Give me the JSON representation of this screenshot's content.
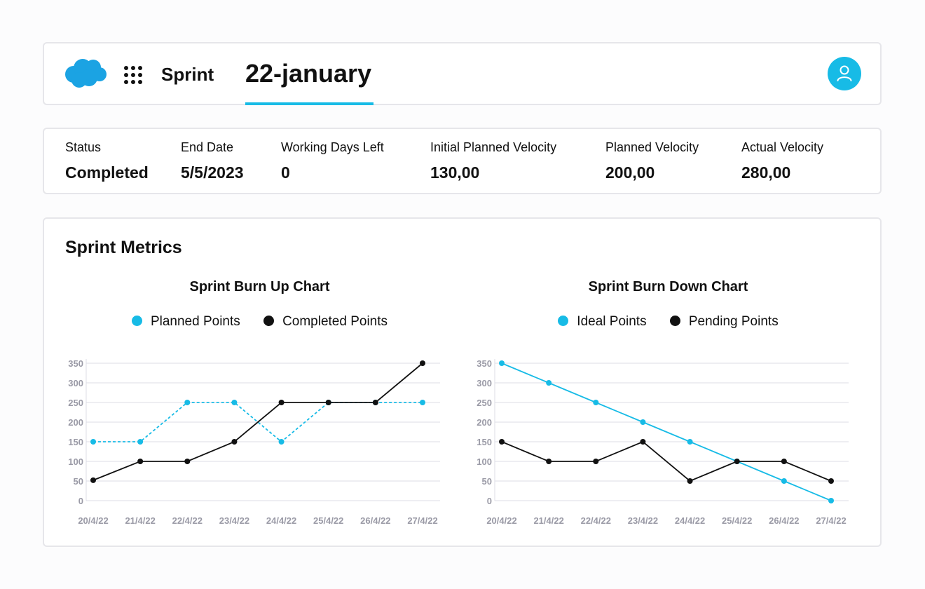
{
  "header": {
    "app": "Sprint",
    "tab": "22-january"
  },
  "stats": [
    {
      "label": "Status",
      "value": "Completed"
    },
    {
      "label": "End Date",
      "value": "5/5/2023"
    },
    {
      "label": "Working Days Left",
      "value": "0"
    },
    {
      "label": "Initial Planned Velocity",
      "value": "130,00"
    },
    {
      "label": "Planned Velocity",
      "value": "200,00"
    },
    {
      "label": "Actual Velocity",
      "value": "280,00"
    }
  ],
  "metrics": {
    "title": "Sprint Metrics"
  },
  "colors": {
    "accent": "#17bbe6",
    "series_dark": "#111111",
    "grid": "#dcdce6",
    "tick": "#9a9aa6"
  },
  "chart_data": [
    {
      "type": "line",
      "title": "Sprint Burn Up Chart",
      "categories": [
        "20/4/22",
        "21/4/22",
        "22/4/22",
        "23/4/22",
        "24/4/22",
        "25/4/22",
        "26/4/22",
        "27/4/22"
      ],
      "ylim": [
        0,
        350
      ],
      "yticks": [
        0,
        50,
        100,
        150,
        200,
        250,
        300,
        350
      ],
      "grid": true,
      "legend": "top-center",
      "series": [
        {
          "name": "Planned Points",
          "values": [
            150,
            150,
            250,
            250,
            150,
            250,
            250,
            250
          ],
          "color": "#17bbe6",
          "dashed": true
        },
        {
          "name": "Completed Points",
          "values": [
            52,
            100,
            100,
            150,
            250,
            250,
            250,
            350
          ],
          "color": "#111111",
          "dashed": false
        }
      ]
    },
    {
      "type": "line",
      "title": "Sprint Burn Down Chart",
      "categories": [
        "20/4/22",
        "21/4/22",
        "22/4/22",
        "23/4/22",
        "24/4/22",
        "25/4/22",
        "26/4/22",
        "27/4/22"
      ],
      "ylim": [
        0,
        350
      ],
      "yticks": [
        0,
        50,
        100,
        150,
        200,
        250,
        300,
        350
      ],
      "grid": true,
      "legend": "top-center",
      "series": [
        {
          "name": "Ideal Points",
          "values": [
            350,
            300,
            250,
            200,
            150,
            100,
            50,
            0
          ],
          "color": "#17bbe6",
          "dashed": false
        },
        {
          "name": "Pending Points",
          "values": [
            150,
            100,
            100,
            150,
            50,
            100,
            100,
            50
          ],
          "color": "#111111",
          "dashed": false
        }
      ]
    }
  ]
}
